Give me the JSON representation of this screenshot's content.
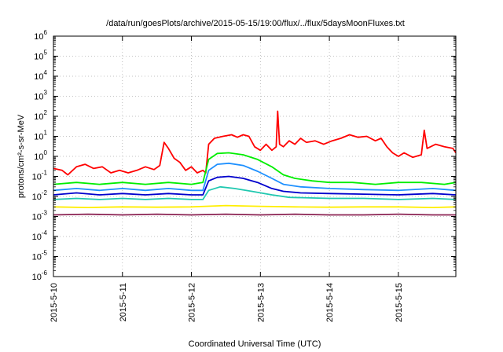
{
  "chart_data": {
    "type": "line",
    "title": "/data/run/goesPlots/archive/2015-05-15/19:00/flux/../flux/5daysMoonFluxes.txt",
    "xlabel": "Coordinated Universal Time (UTC)",
    "ylabel": "protons/cm²-s-sr-MeV",
    "x_scale": "time",
    "xlim": [
      "2015-05-10T00:00",
      "2015-05-15T20:00"
    ],
    "x_ticks": [
      "2015-5-10",
      "2015-5-11",
      "2015-5-12",
      "2015-5-13",
      "2015-5-14",
      "2015-5-15"
    ],
    "y_scale": "log",
    "ylim": [
      1e-06,
      1000000.0
    ],
    "y_ticks": [
      {
        "base": "10",
        "exp": "-6",
        "value": 1e-06
      },
      {
        "base": "10",
        "exp": "-5",
        "value": 1e-05
      },
      {
        "base": "10",
        "exp": "-4",
        "value": 0.0001
      },
      {
        "base": "10",
        "exp": "-3",
        "value": 0.001
      },
      {
        "base": "10",
        "exp": "-2",
        "value": 0.01
      },
      {
        "base": "10",
        "exp": "-1",
        "value": 0.1
      },
      {
        "base": "10",
        "exp": "0",
        "value": 1
      },
      {
        "base": "10",
        "exp": "1",
        "value": 10
      },
      {
        "base": "10",
        "exp": "2",
        "value": 100
      },
      {
        "base": "10",
        "exp": "3",
        "value": 1000
      },
      {
        "base": "10",
        "exp": "4",
        "value": 10000
      },
      {
        "base": "10",
        "exp": "5",
        "value": 100000
      },
      {
        "base": "10",
        "exp": "6",
        "value": 1000000
      }
    ],
    "grid": true,
    "legend": "none",
    "series": [
      {
        "color": "#ff0000",
        "points": [
          [
            "2015-05-10T00:00",
            0.25
          ],
          [
            "2015-05-10T03:00",
            0.2
          ],
          [
            "2015-05-10T05:00",
            0.12
          ],
          [
            "2015-05-10T08:00",
            0.3
          ],
          [
            "2015-05-10T11:00",
            0.4
          ],
          [
            "2015-05-10T14:00",
            0.25
          ],
          [
            "2015-05-10T17:00",
            0.3
          ],
          [
            "2015-05-10T20:00",
            0.15
          ],
          [
            "2015-05-10T23:00",
            0.2
          ],
          [
            "2015-05-11T02:00",
            0.15
          ],
          [
            "2015-05-11T05:00",
            0.2
          ],
          [
            "2015-05-11T08:00",
            0.3
          ],
          [
            "2015-05-11T11:00",
            0.22
          ],
          [
            "2015-05-11T13:00",
            0.35
          ],
          [
            "2015-05-11T14:30",
            5
          ],
          [
            "2015-05-11T16:00",
            2.5
          ],
          [
            "2015-05-11T18:00",
            0.8
          ],
          [
            "2015-05-11T20:00",
            0.5
          ],
          [
            "2015-05-11T22:00",
            0.2
          ],
          [
            "2015-05-12T00:00",
            0.3
          ],
          [
            "2015-05-12T02:00",
            0.15
          ],
          [
            "2015-05-12T04:00",
            0.2
          ],
          [
            "2015-05-12T05:00",
            0.15
          ],
          [
            "2015-05-12T06:00",
            4
          ],
          [
            "2015-05-12T08:00",
            8
          ],
          [
            "2015-05-12T11:00",
            10
          ],
          [
            "2015-05-12T14:00",
            12
          ],
          [
            "2015-05-12T16:00",
            9
          ],
          [
            "2015-05-12T18:00",
            12
          ],
          [
            "2015-05-12T20:00",
            10
          ],
          [
            "2015-05-12T22:00",
            3
          ],
          [
            "2015-05-13T00:00",
            2
          ],
          [
            "2015-05-13T02:00",
            4
          ],
          [
            "2015-05-13T04:00",
            2
          ],
          [
            "2015-05-13T05:30",
            3
          ],
          [
            "2015-05-13T06:00",
            180
          ],
          [
            "2015-05-13T06:40",
            4
          ],
          [
            "2015-05-13T08:00",
            3
          ],
          [
            "2015-05-13T10:00",
            6
          ],
          [
            "2015-05-13T12:00",
            4
          ],
          [
            "2015-05-13T14:00",
            8
          ],
          [
            "2015-05-13T16:00",
            5
          ],
          [
            "2015-05-13T19:00",
            6
          ],
          [
            "2015-05-13T22:00",
            4
          ],
          [
            "2015-05-14T01:00",
            6
          ],
          [
            "2015-05-14T04:00",
            8
          ],
          [
            "2015-05-14T07:00",
            12
          ],
          [
            "2015-05-14T10:00",
            9
          ],
          [
            "2015-05-14T13:00",
            10
          ],
          [
            "2015-05-14T16:00",
            6
          ],
          [
            "2015-05-14T18:00",
            8
          ],
          [
            "2015-05-14T20:00",
            3
          ],
          [
            "2015-05-14T22:00",
            1.5
          ],
          [
            "2015-05-15T00:00",
            1
          ],
          [
            "2015-05-15T02:00",
            1.5
          ],
          [
            "2015-05-15T05:00",
            0.9
          ],
          [
            "2015-05-15T08:00",
            1.2
          ],
          [
            "2015-05-15T09:00",
            20
          ],
          [
            "2015-05-15T10:00",
            2.5
          ],
          [
            "2015-05-15T13:00",
            4
          ],
          [
            "2015-05-15T16:00",
            3
          ],
          [
            "2015-05-15T19:00",
            2.5
          ],
          [
            "2015-05-15T20:00",
            1.5
          ]
        ]
      },
      {
        "color": "#00ee00",
        "points": [
          [
            "2015-05-10T00:00",
            0.04
          ],
          [
            "2015-05-10T08:00",
            0.05
          ],
          [
            "2015-05-10T16:00",
            0.04
          ],
          [
            "2015-05-11T00:00",
            0.05
          ],
          [
            "2015-05-11T08:00",
            0.04
          ],
          [
            "2015-05-11T16:00",
            0.05
          ],
          [
            "2015-05-12T00:00",
            0.04
          ],
          [
            "2015-05-12T04:00",
            0.05
          ],
          [
            "2015-05-12T06:00",
            0.7
          ],
          [
            "2015-05-12T09:00",
            1.4
          ],
          [
            "2015-05-12T13:00",
            1.5
          ],
          [
            "2015-05-12T18:00",
            1.2
          ],
          [
            "2015-05-12T23:00",
            0.7
          ],
          [
            "2015-05-13T04:00",
            0.3
          ],
          [
            "2015-05-13T08:00",
            0.12
          ],
          [
            "2015-05-13T12:00",
            0.08
          ],
          [
            "2015-05-13T18:00",
            0.06
          ],
          [
            "2015-05-14T00:00",
            0.05
          ],
          [
            "2015-05-14T08:00",
            0.05
          ],
          [
            "2015-05-14T16:00",
            0.04
          ],
          [
            "2015-05-15T00:00",
            0.05
          ],
          [
            "2015-05-15T08:00",
            0.05
          ],
          [
            "2015-05-15T16:00",
            0.04
          ],
          [
            "2015-05-15T20:00",
            0.05
          ]
        ]
      },
      {
        "color": "#1e90ff",
        "points": [
          [
            "2015-05-10T00:00",
            0.02
          ],
          [
            "2015-05-10T08:00",
            0.025
          ],
          [
            "2015-05-10T16:00",
            0.02
          ],
          [
            "2015-05-11T00:00",
            0.025
          ],
          [
            "2015-05-11T08:00",
            0.02
          ],
          [
            "2015-05-11T16:00",
            0.025
          ],
          [
            "2015-05-12T00:00",
            0.02
          ],
          [
            "2015-05-12T04:00",
            0.02
          ],
          [
            "2015-05-12T06:00",
            0.2
          ],
          [
            "2015-05-12T09:00",
            0.4
          ],
          [
            "2015-05-12T13:00",
            0.45
          ],
          [
            "2015-05-12T18:00",
            0.35
          ],
          [
            "2015-05-12T23:00",
            0.18
          ],
          [
            "2015-05-13T04:00",
            0.08
          ],
          [
            "2015-05-13T08:00",
            0.04
          ],
          [
            "2015-05-13T14:00",
            0.03
          ],
          [
            "2015-05-14T00:00",
            0.025
          ],
          [
            "2015-05-14T12:00",
            0.022
          ],
          [
            "2015-05-15T00:00",
            0.02
          ],
          [
            "2015-05-15T12:00",
            0.025
          ],
          [
            "2015-05-15T20:00",
            0.02
          ]
        ]
      },
      {
        "color": "#0000cd",
        "points": [
          [
            "2015-05-10T00:00",
            0.012
          ],
          [
            "2015-05-10T08:00",
            0.015
          ],
          [
            "2015-05-10T16:00",
            0.012
          ],
          [
            "2015-05-11T00:00",
            0.014
          ],
          [
            "2015-05-11T08:00",
            0.012
          ],
          [
            "2015-05-11T16:00",
            0.014
          ],
          [
            "2015-05-12T00:00",
            0.012
          ],
          [
            "2015-05-12T04:00",
            0.012
          ],
          [
            "2015-05-12T06:00",
            0.06
          ],
          [
            "2015-05-12T09:00",
            0.09
          ],
          [
            "2015-05-12T13:00",
            0.1
          ],
          [
            "2015-05-12T18:00",
            0.08
          ],
          [
            "2015-05-12T23:00",
            0.05
          ],
          [
            "2015-05-13T04:00",
            0.025
          ],
          [
            "2015-05-13T08:00",
            0.018
          ],
          [
            "2015-05-13T14:00",
            0.015
          ],
          [
            "2015-05-14T00:00",
            0.014
          ],
          [
            "2015-05-14T12:00",
            0.013
          ],
          [
            "2015-05-15T00:00",
            0.012
          ],
          [
            "2015-05-15T12:00",
            0.014
          ],
          [
            "2015-05-15T20:00",
            0.012
          ]
        ]
      },
      {
        "color": "#20c8b0",
        "points": [
          [
            "2015-05-10T00:00",
            0.007
          ],
          [
            "2015-05-10T08:00",
            0.008
          ],
          [
            "2015-05-10T16:00",
            0.007
          ],
          [
            "2015-05-11T00:00",
            0.008
          ],
          [
            "2015-05-11T08:00",
            0.007
          ],
          [
            "2015-05-11T16:00",
            0.008
          ],
          [
            "2015-05-12T00:00",
            0.007
          ],
          [
            "2015-05-12T04:00",
            0.007
          ],
          [
            "2015-05-12T06:00",
            0.02
          ],
          [
            "2015-05-12T10:00",
            0.03
          ],
          [
            "2015-05-12T15:00",
            0.025
          ],
          [
            "2015-05-12T21:00",
            0.018
          ],
          [
            "2015-05-13T04:00",
            0.012
          ],
          [
            "2015-05-13T10:00",
            0.009
          ],
          [
            "2015-05-14T00:00",
            0.008
          ],
          [
            "2015-05-14T12:00",
            0.008
          ],
          [
            "2015-05-15T00:00",
            0.007
          ],
          [
            "2015-05-15T12:00",
            0.008
          ],
          [
            "2015-05-15T20:00",
            0.007
          ]
        ]
      },
      {
        "color": "#ffee00",
        "points": [
          [
            "2015-05-10T00:00",
            0.003
          ],
          [
            "2015-05-10T12:00",
            0.0028
          ],
          [
            "2015-05-11T00:00",
            0.003
          ],
          [
            "2015-05-11T12:00",
            0.0029
          ],
          [
            "2015-05-12T00:00",
            0.003
          ],
          [
            "2015-05-12T12:00",
            0.0035
          ],
          [
            "2015-05-13T00:00",
            0.0032
          ],
          [
            "2015-05-13T12:00",
            0.003
          ],
          [
            "2015-05-14T00:00",
            0.0029
          ],
          [
            "2015-05-14T12:00",
            0.003
          ],
          [
            "2015-05-15T00:00",
            0.003
          ],
          [
            "2015-05-15T12:00",
            0.0028
          ],
          [
            "2015-05-15T20:00",
            0.003
          ]
        ]
      },
      {
        "color": "#8b2252",
        "points": [
          [
            "2015-05-10T00:00",
            0.0012
          ],
          [
            "2015-05-10T12:00",
            0.0013
          ],
          [
            "2015-05-11T00:00",
            0.0012
          ],
          [
            "2015-05-11T12:00",
            0.0013
          ],
          [
            "2015-05-12T00:00",
            0.0012
          ],
          [
            "2015-05-12T12:00",
            0.0013
          ],
          [
            "2015-05-13T00:00",
            0.0012
          ],
          [
            "2015-05-13T12:00",
            0.0013
          ],
          [
            "2015-05-14T00:00",
            0.0012
          ],
          [
            "2015-05-14T12:00",
            0.0012
          ],
          [
            "2015-05-15T00:00",
            0.0013
          ],
          [
            "2015-05-15T12:00",
            0.0012
          ],
          [
            "2015-05-15T20:00",
            0.0012
          ]
        ]
      }
    ]
  }
}
